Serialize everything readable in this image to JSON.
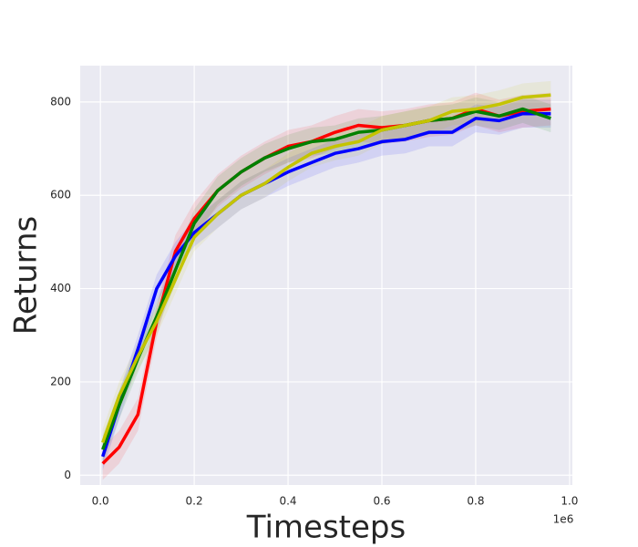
{
  "chart_data": {
    "type": "line",
    "x_label": "Timesteps",
    "y_label": "Returns",
    "x_offset_label": "1e6",
    "grid": true,
    "x": [
      0.005,
      0.04,
      0.08,
      0.12,
      0.16,
      0.2,
      0.25,
      0.3,
      0.35,
      0.4,
      0.45,
      0.5,
      0.55,
      0.6,
      0.65,
      0.7,
      0.75,
      0.8,
      0.85,
      0.9,
      0.96
    ],
    "series": [
      {
        "color": "#ff0000",
        "spread": 35,
        "values": [
          25,
          60,
          130,
          330,
          480,
          550,
          610,
          650,
          680,
          705,
          715,
          735,
          750,
          745,
          750,
          760,
          765,
          785,
          770,
          780,
          785
        ]
      },
      {
        "color": "#0000ff",
        "spread": 30,
        "values": [
          40,
          150,
          270,
          400,
          470,
          520,
          560,
          600,
          625,
          650,
          670,
          690,
          700,
          715,
          720,
          735,
          735,
          765,
          760,
          775,
          775
        ]
      },
      {
        "color": "#008000",
        "spread": 30,
        "values": [
          55,
          150,
          250,
          340,
          440,
          540,
          610,
          650,
          680,
          700,
          715,
          720,
          735,
          740,
          750,
          760,
          765,
          780,
          770,
          785,
          765
        ]
      },
      {
        "color": "#c4c400",
        "spread": 30,
        "values": [
          70,
          170,
          255,
          330,
          420,
          510,
          560,
          600,
          625,
          660,
          690,
          705,
          715,
          740,
          750,
          760,
          780,
          785,
          795,
          810,
          815
        ]
      }
    ],
    "xlim": [
      -0.043,
      1.006
    ],
    "ylim": [
      -21,
      878
    ],
    "xticks": [
      {
        "value": 0,
        "label": "0.0"
      },
      0.2,
      0.4,
      0.6,
      0.8,
      {
        "value": 1,
        "label": "1.0"
      }
    ],
    "yticks": [
      0,
      200,
      400,
      600,
      800
    ]
  }
}
